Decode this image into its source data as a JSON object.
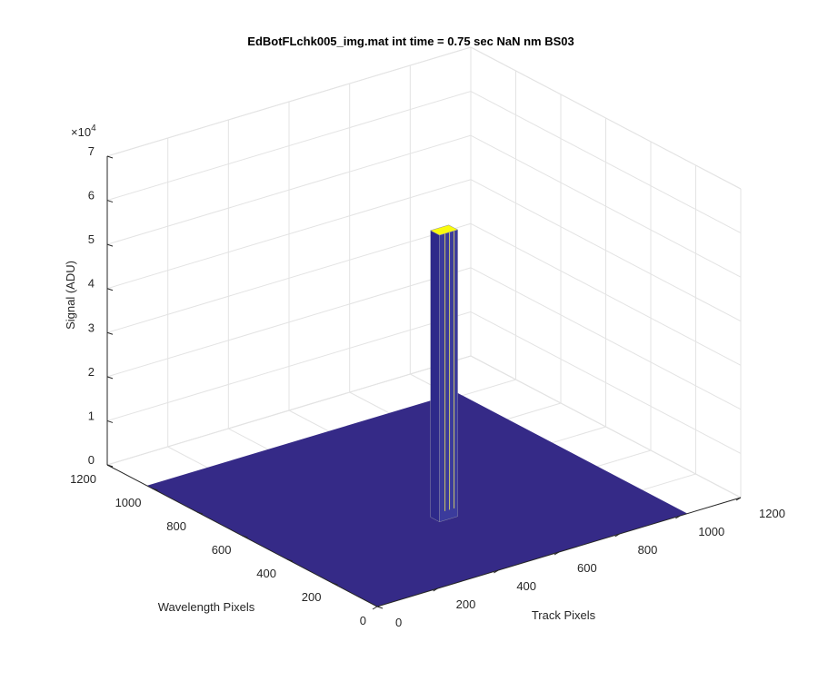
{
  "chart_data": {
    "type": "surface",
    "title": "EdBotFLchk005_img.mat int time = 0.75 sec  NaN nm BS03",
    "xlabel": "Track Pixels",
    "ylabel": "Wavelength Pixels",
    "zlabel": "Signal (ADU)",
    "zmultiplier": {
      "base": "×10",
      "exponent": "4"
    },
    "xlim": [
      0,
      1200
    ],
    "xticks": [
      0,
      200,
      400,
      600,
      800,
      1000,
      1200
    ],
    "ylim": [
      0,
      1200
    ],
    "yticks": [
      0,
      200,
      400,
      600,
      800,
      1000,
      1200
    ],
    "zlim": [
      0,
      70000
    ],
    "zticks": [
      0,
      {
        "value": 10000,
        "label": "1"
      },
      {
        "value": 20000,
        "label": "2"
      },
      {
        "value": 30000,
        "label": "3"
      },
      {
        "value": 40000,
        "label": "4"
      },
      {
        "value": 50000,
        "label": "5"
      },
      {
        "value": 60000,
        "label": "6"
      },
      {
        "value": 70000,
        "label": "7"
      }
    ],
    "grid": true,
    "data_extent": {
      "track": 1024,
      "wavelength": 1024
    },
    "peak": {
      "track": 470,
      "wavelength": 356,
      "signal": 65000
    },
    "surface_color": "#352a87",
    "peak_color": "#f9fb0e"
  }
}
